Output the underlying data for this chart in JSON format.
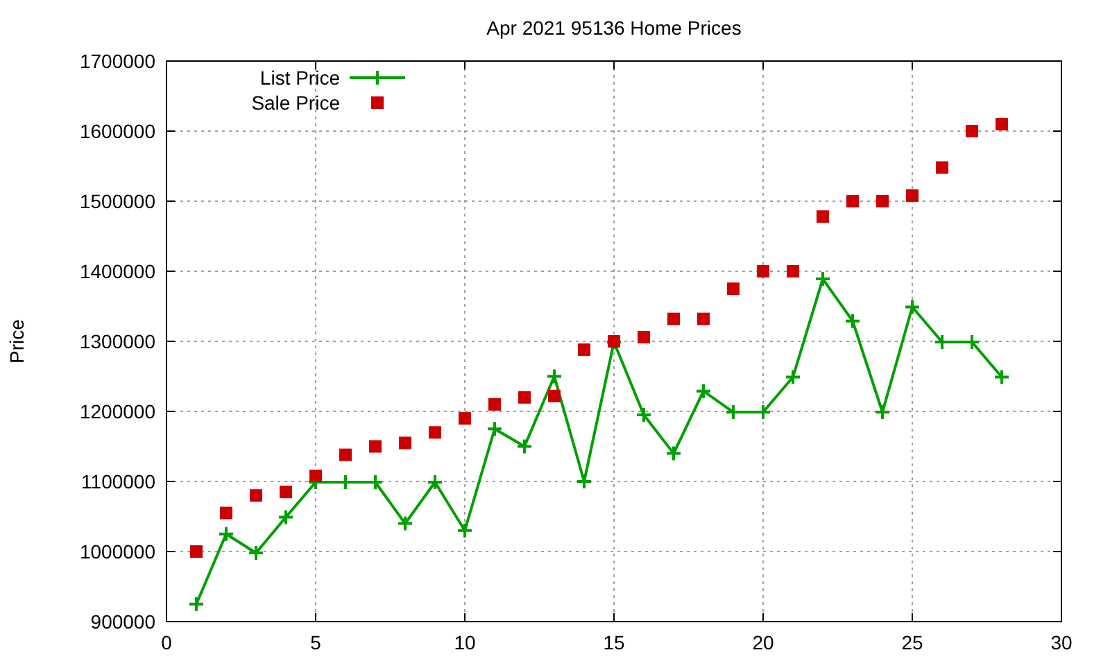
{
  "chart_data": {
    "type": "line",
    "title": "Apr 2021 95136 Home Prices",
    "ylabel": "Price",
    "x": [
      1,
      2,
      3,
      4,
      5,
      6,
      7,
      8,
      9,
      10,
      11,
      12,
      13,
      14,
      15,
      16,
      17,
      18,
      19,
      20,
      21,
      22,
      23,
      24,
      25,
      26,
      27,
      28
    ],
    "series": [
      {
        "name": "List Price",
        "color": "#00a000",
        "marker": "cross",
        "values": [
          925000,
          1025000,
          998000,
          1049000,
          1099000,
          1099000,
          1099000,
          1040000,
          1099000,
          1030000,
          1175000,
          1150000,
          1250000,
          1100000,
          1299000,
          1195000,
          1140000,
          1229000,
          1199000,
          1199000,
          1249000,
          1389000,
          1329000,
          1199000,
          1349000,
          1299000,
          1299000,
          1249000
        ]
      },
      {
        "name": "Sale Price",
        "type": "scatter",
        "color": "#cc0000",
        "marker": "square",
        "values": [
          1000000,
          1055000,
          1080000,
          1085000,
          1108000,
          1138000,
          1150000,
          1155000,
          1170000,
          1190000,
          1210000,
          1220000,
          1222000,
          1288000,
          1300000,
          1306000,
          1332000,
          1332000,
          1375000,
          1400000,
          1400000,
          1478000,
          1500000,
          1500000,
          1508000,
          1548000,
          1600000,
          1610000
        ]
      }
    ],
    "xlim": [
      0,
      30
    ],
    "xticks": [
      0,
      5,
      10,
      15,
      20,
      25,
      30
    ],
    "ylim": [
      900000,
      1700000
    ],
    "yticks": [
      900000,
      1000000,
      1100000,
      1200000,
      1300000,
      1400000,
      1500000,
      1600000,
      1700000
    ],
    "grid": true,
    "legend": "top left"
  }
}
